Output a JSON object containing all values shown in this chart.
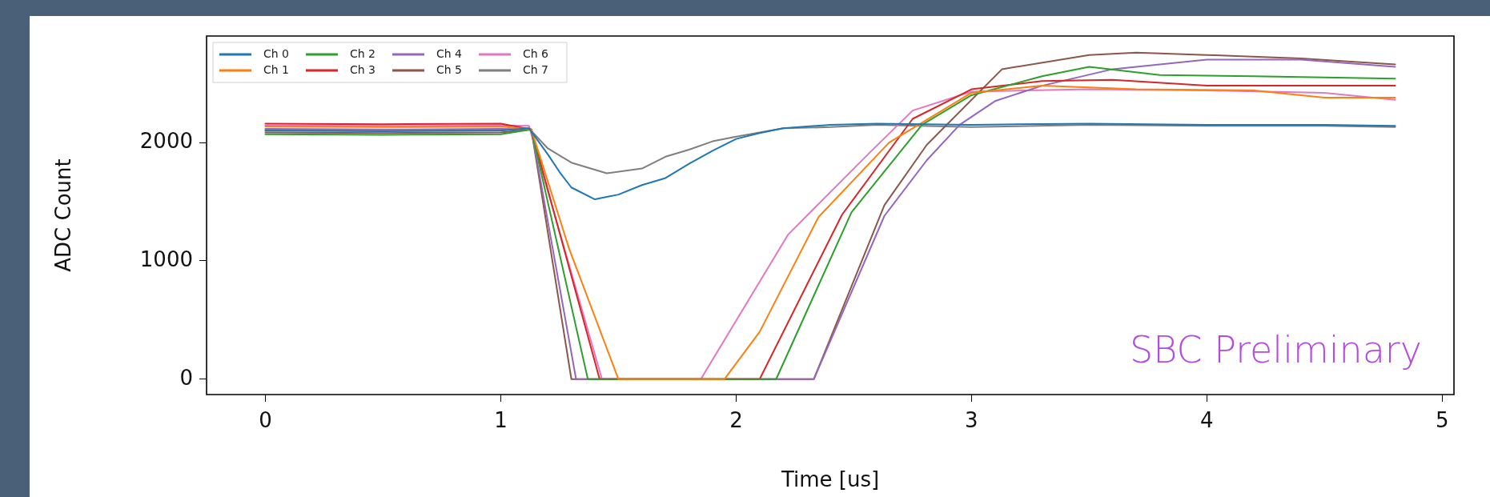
{
  "chart_data": {
    "type": "line",
    "xlabel": "Time [us]",
    "ylabel": "ADC Count",
    "xlim": [
      -0.25,
      5.05
    ],
    "ylim": [
      -130,
      2900
    ],
    "xticks": [
      0,
      1,
      2,
      3,
      4,
      5
    ],
    "yticks": [
      0,
      1000,
      2000
    ],
    "grid": false,
    "legend": "top left",
    "marker": "none",
    "line_style": "solid",
    "annotations": [
      "SBC Preliminary"
    ],
    "series": [
      {
        "name": "Ch 0",
        "color": "#1f77b4",
        "x": [
          0,
          0.5,
          1.0,
          1.12,
          1.2,
          1.25,
          1.3,
          1.4,
          1.5,
          1.6,
          1.7,
          1.8,
          1.9,
          2.0,
          2.1,
          2.2,
          2.4,
          2.6,
          3.0,
          3.5,
          4.0,
          4.5,
          4.8
        ],
        "values": [
          2100,
          2095,
          2100,
          2120,
          1900,
          1750,
          1620,
          1520,
          1560,
          1640,
          1700,
          1820,
          1930,
          2030,
          2080,
          2120,
          2150,
          2160,
          2150,
          2160,
          2150,
          2150,
          2140
        ]
      },
      {
        "name": "Ch 1",
        "color": "#ff7f0e",
        "x": [
          0,
          0.5,
          1.0,
          1.13,
          1.29,
          1.5,
          1.95,
          2.1,
          2.35,
          2.65,
          3.0,
          3.3,
          3.7,
          4.2,
          4.5,
          4.8
        ],
        "values": [
          2135,
          2130,
          2135,
          2110,
          1105,
          0,
          0,
          400,
          1370,
          2000,
          2420,
          2480,
          2450,
          2440,
          2380,
          2380
        ]
      },
      {
        "name": "Ch 2",
        "color": "#2ca02c",
        "x": [
          0,
          0.5,
          1.0,
          1.13,
          1.37,
          2.17,
          2.49,
          2.79,
          3.0,
          3.3,
          3.5,
          3.8,
          4.2,
          4.8
        ],
        "values": [
          2070,
          2065,
          2070,
          2110,
          0,
          0,
          1410,
          2150,
          2400,
          2560,
          2640,
          2570,
          2560,
          2540
        ]
      },
      {
        "name": "Ch 3",
        "color": "#d62728",
        "x": [
          0,
          0.5,
          1.0,
          1.13,
          1.42,
          2.1,
          2.45,
          2.75,
          3.0,
          3.3,
          3.6,
          4.0,
          4.8
        ],
        "values": [
          2160,
          2155,
          2160,
          2110,
          0,
          0,
          1390,
          2200,
          2450,
          2520,
          2530,
          2480,
          2480
        ]
      },
      {
        "name": "Ch 4",
        "color": "#9467bd",
        "x": [
          0,
          0.5,
          1.0,
          1.13,
          1.32,
          2.33,
          2.63,
          2.81,
          2.95,
          3.1,
          3.3,
          3.6,
          4.0,
          4.4,
          4.8
        ],
        "values": [
          2115,
          2110,
          2115,
          2110,
          0,
          0,
          1380,
          1850,
          2150,
          2350,
          2480,
          2620,
          2700,
          2700,
          2640
        ]
      },
      {
        "name": "Ch 5",
        "color": "#8c564b",
        "x": [
          0,
          0.5,
          1.0,
          1.13,
          1.3,
          2.33,
          2.63,
          2.81,
          3.13,
          3.5,
          3.7,
          4.0,
          4.4,
          4.8
        ],
        "values": [
          2085,
          2080,
          2085,
          2110,
          0,
          0,
          1470,
          1980,
          2620,
          2740,
          2760,
          2740,
          2710,
          2660
        ]
      },
      {
        "name": "Ch 6",
        "color": "#e377c2",
        "x": [
          0,
          0.5,
          1.0,
          1.12,
          1.43,
          1.85,
          2.22,
          2.56,
          2.75,
          3.0,
          3.5,
          4.0,
          4.5,
          4.8
        ],
        "values": [
          2145,
          2140,
          2145,
          2140,
          0,
          0,
          1220,
          1900,
          2270,
          2430,
          2450,
          2440,
          2420,
          2360
        ]
      },
      {
        "name": "Ch 7",
        "color": "#7f7f7f",
        "x": [
          0,
          0.5,
          1.0,
          1.12,
          1.2,
          1.3,
          1.45,
          1.6,
          1.7,
          1.8,
          1.9,
          2.0,
          2.2,
          2.4,
          2.6,
          3.0,
          3.5,
          4.0,
          4.5,
          4.8
        ],
        "values": [
          2105,
          2100,
          2105,
          2120,
          1950,
          1830,
          1740,
          1780,
          1880,
          1940,
          2010,
          2050,
          2120,
          2130,
          2150,
          2130,
          2150,
          2140,
          2140,
          2130
        ]
      }
    ]
  }
}
